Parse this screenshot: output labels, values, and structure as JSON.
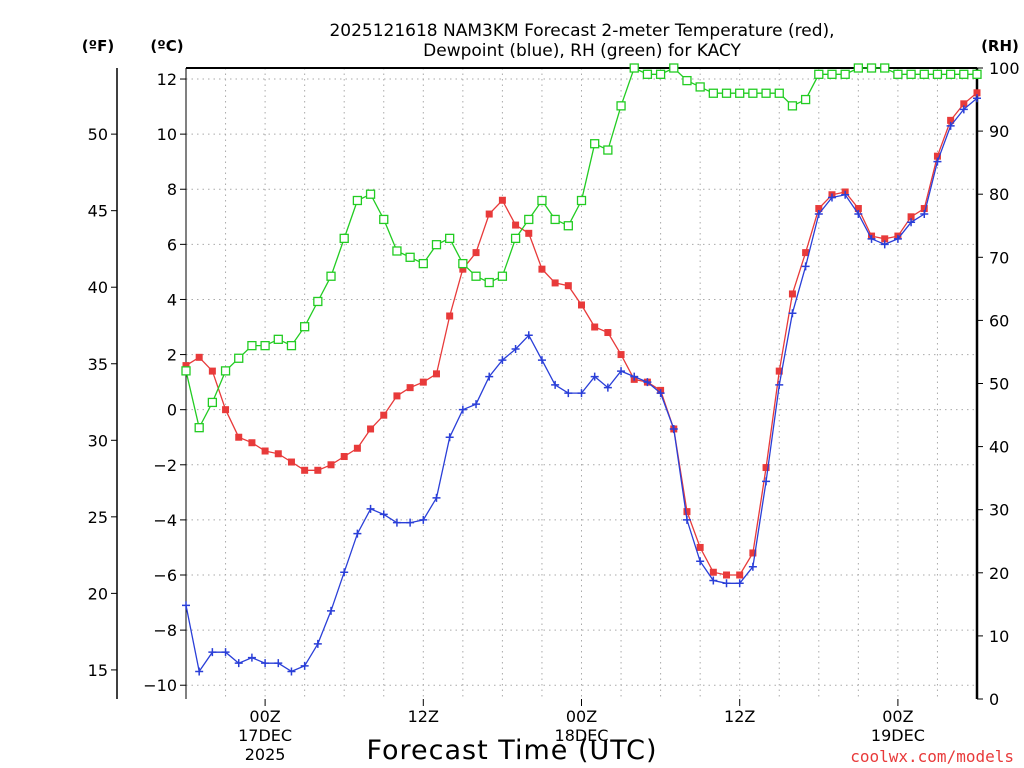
{
  "chart_data": {
    "type": "line",
    "title_line1": "2025121618 NAM3KM Forecast 2-meter Temperature (red),",
    "title_line2": "Dewpoint (blue), RH (green) for KACY",
    "unit_f": "(ºF)",
    "unit_c": "(ºC)",
    "unit_rh": "(RH)",
    "xlabel": "Forecast Time (UTC)",
    "credit": "coolwx.com/models",
    "x_range": [
      -6,
      54
    ],
    "x_ticks": [
      {
        "x": 0,
        "label": "00Z",
        "sub1": "17DEC",
        "sub2": "2025"
      },
      {
        "x": 12,
        "label": "12Z",
        "sub1": "",
        "sub2": ""
      },
      {
        "x": 24,
        "label": "00Z",
        "sub1": "18DEC",
        "sub2": ""
      },
      {
        "x": 36,
        "label": "12Z",
        "sub1": "",
        "sub2": ""
      },
      {
        "x": 48,
        "label": "00Z",
        "sub1": "19DEC",
        "sub2": ""
      }
    ],
    "y_c_range": [
      -10.5,
      12.4
    ],
    "y_c_ticks": [
      12,
      10,
      8,
      6,
      4,
      2,
      0,
      -2,
      -4,
      -6,
      -8,
      -10
    ],
    "y_f_ticks": [
      50,
      45,
      40,
      35,
      30,
      25,
      20,
      15
    ],
    "y_rh_range": [
      0,
      100
    ],
    "y_rh_ticks": [
      100,
      90,
      80,
      70,
      60,
      50,
      40,
      30,
      20,
      10,
      0
    ],
    "x_hours": [
      -6,
      -5,
      -4,
      -3,
      -2,
      -1,
      0,
      1,
      2,
      3,
      4,
      5,
      6,
      7,
      8,
      9,
      10,
      11,
      12,
      13,
      14,
      15,
      16,
      17,
      18,
      19,
      20,
      21,
      22,
      23,
      24,
      25,
      26,
      27,
      28,
      29,
      30,
      31,
      32,
      33,
      34,
      35,
      36,
      37,
      38,
      39,
      40,
      41,
      42,
      43,
      44,
      45,
      46,
      47,
      48,
      49,
      50,
      51,
      52,
      53,
      54
    ],
    "series": [
      {
        "name": "Temperature",
        "unit": "C",
        "color": "#e83a3a",
        "marker": "filled-square",
        "values": [
          1.6,
          1.9,
          1.4,
          0.0,
          -1.0,
          -1.2,
          -1.5,
          -1.6,
          -1.9,
          -2.2,
          -2.2,
          -2.0,
          -1.7,
          -1.4,
          -0.7,
          -0.2,
          0.5,
          0.8,
          1.0,
          1.3,
          3.4,
          5.1,
          5.7,
          7.1,
          7.6,
          6.7,
          6.4,
          5.1,
          4.6,
          4.5,
          3.8,
          3.0,
          2.8,
          2.0,
          1.1,
          1.0,
          0.7,
          -0.7,
          -3.7,
          -5.0,
          -5.9,
          -6.0,
          -6.0,
          -5.2,
          -2.1,
          1.4,
          4.2,
          5.7,
          7.3,
          7.8,
          7.9,
          7.3,
          6.3,
          6.2,
          6.3,
          7.0,
          7.3,
          9.2,
          10.5,
          11.1,
          11.5
        ]
      },
      {
        "name": "Dewpoint",
        "unit": "C",
        "color": "#2a3fd8",
        "marker": "plus",
        "values": [
          -7.1,
          -9.5,
          -8.8,
          -8.8,
          -9.2,
          -9.0,
          -9.2,
          -9.2,
          -9.5,
          -9.3,
          -8.5,
          -7.3,
          -5.9,
          -4.5,
          -3.6,
          -3.8,
          -4.1,
          -4.1,
          -4.0,
          -3.2,
          -1.0,
          0.0,
          0.2,
          1.2,
          1.8,
          2.2,
          2.7,
          1.8,
          0.9,
          0.6,
          0.6,
          1.2,
          0.8,
          1.4,
          1.2,
          1.0,
          0.6,
          -0.7,
          -4.0,
          -5.5,
          -6.2,
          -6.3,
          -6.3,
          -5.7,
          -2.6,
          0.9,
          3.5,
          5.2,
          7.1,
          7.7,
          7.8,
          7.1,
          6.2,
          6.0,
          6.2,
          6.8,
          7.1,
          9.0,
          10.3,
          10.9,
          11.3
        ]
      },
      {
        "name": "RH",
        "unit": "%",
        "color": "#22cc22",
        "marker": "open-square",
        "values": [
          52,
          43,
          47,
          52,
          54,
          56,
          56,
          57,
          56,
          59,
          63,
          67,
          73,
          79,
          80,
          76,
          71,
          70,
          69,
          72,
          73,
          69,
          67,
          66,
          67,
          73,
          76,
          79,
          76,
          75,
          79,
          88,
          87,
          94,
          100,
          99,
          99,
          100,
          98,
          97,
          96,
          96,
          96,
          96,
          96,
          96,
          94,
          95,
          99,
          99,
          99,
          100,
          100,
          100,
          99,
          99,
          99,
          99,
          99,
          99,
          99
        ]
      }
    ]
  }
}
